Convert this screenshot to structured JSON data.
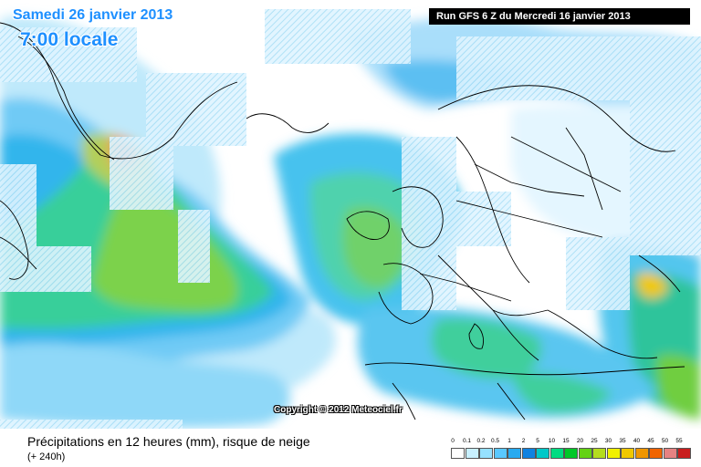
{
  "header": {
    "date": "Samedi 26 janvier 2013",
    "time": "7:00 locale",
    "run": "Run GFS 6 Z du Mercredi 16 janvier 2013"
  },
  "map": {
    "copyright": "Copyright © 2012 Meteociel.fr",
    "ocean_color": "#ffffff",
    "coast_color": "#000000",
    "snow_hatch": "white diagonal"
  },
  "footer": {
    "title": "Précipitations en 12 heures (mm), risque de neige",
    "subtitle": "(+ 240h)"
  },
  "legend": {
    "labels": [
      "0",
      "0.1",
      "0.2",
      "0.5",
      "1",
      "2",
      "5",
      "10",
      "15",
      "20",
      "25",
      "30",
      "35",
      "40",
      "45",
      "50",
      "55"
    ],
    "colors": [
      "#ffffff",
      "#c8f0ff",
      "#96e1ff",
      "#5ac8ff",
      "#28aaf0",
      "#0f82e1",
      "#00c8c8",
      "#00dc82",
      "#00c828",
      "#64d214",
      "#b4dc1e",
      "#f0f000",
      "#f0c800",
      "#f09600",
      "#f06400",
      "#e68282",
      "#c81e1e"
    ]
  }
}
